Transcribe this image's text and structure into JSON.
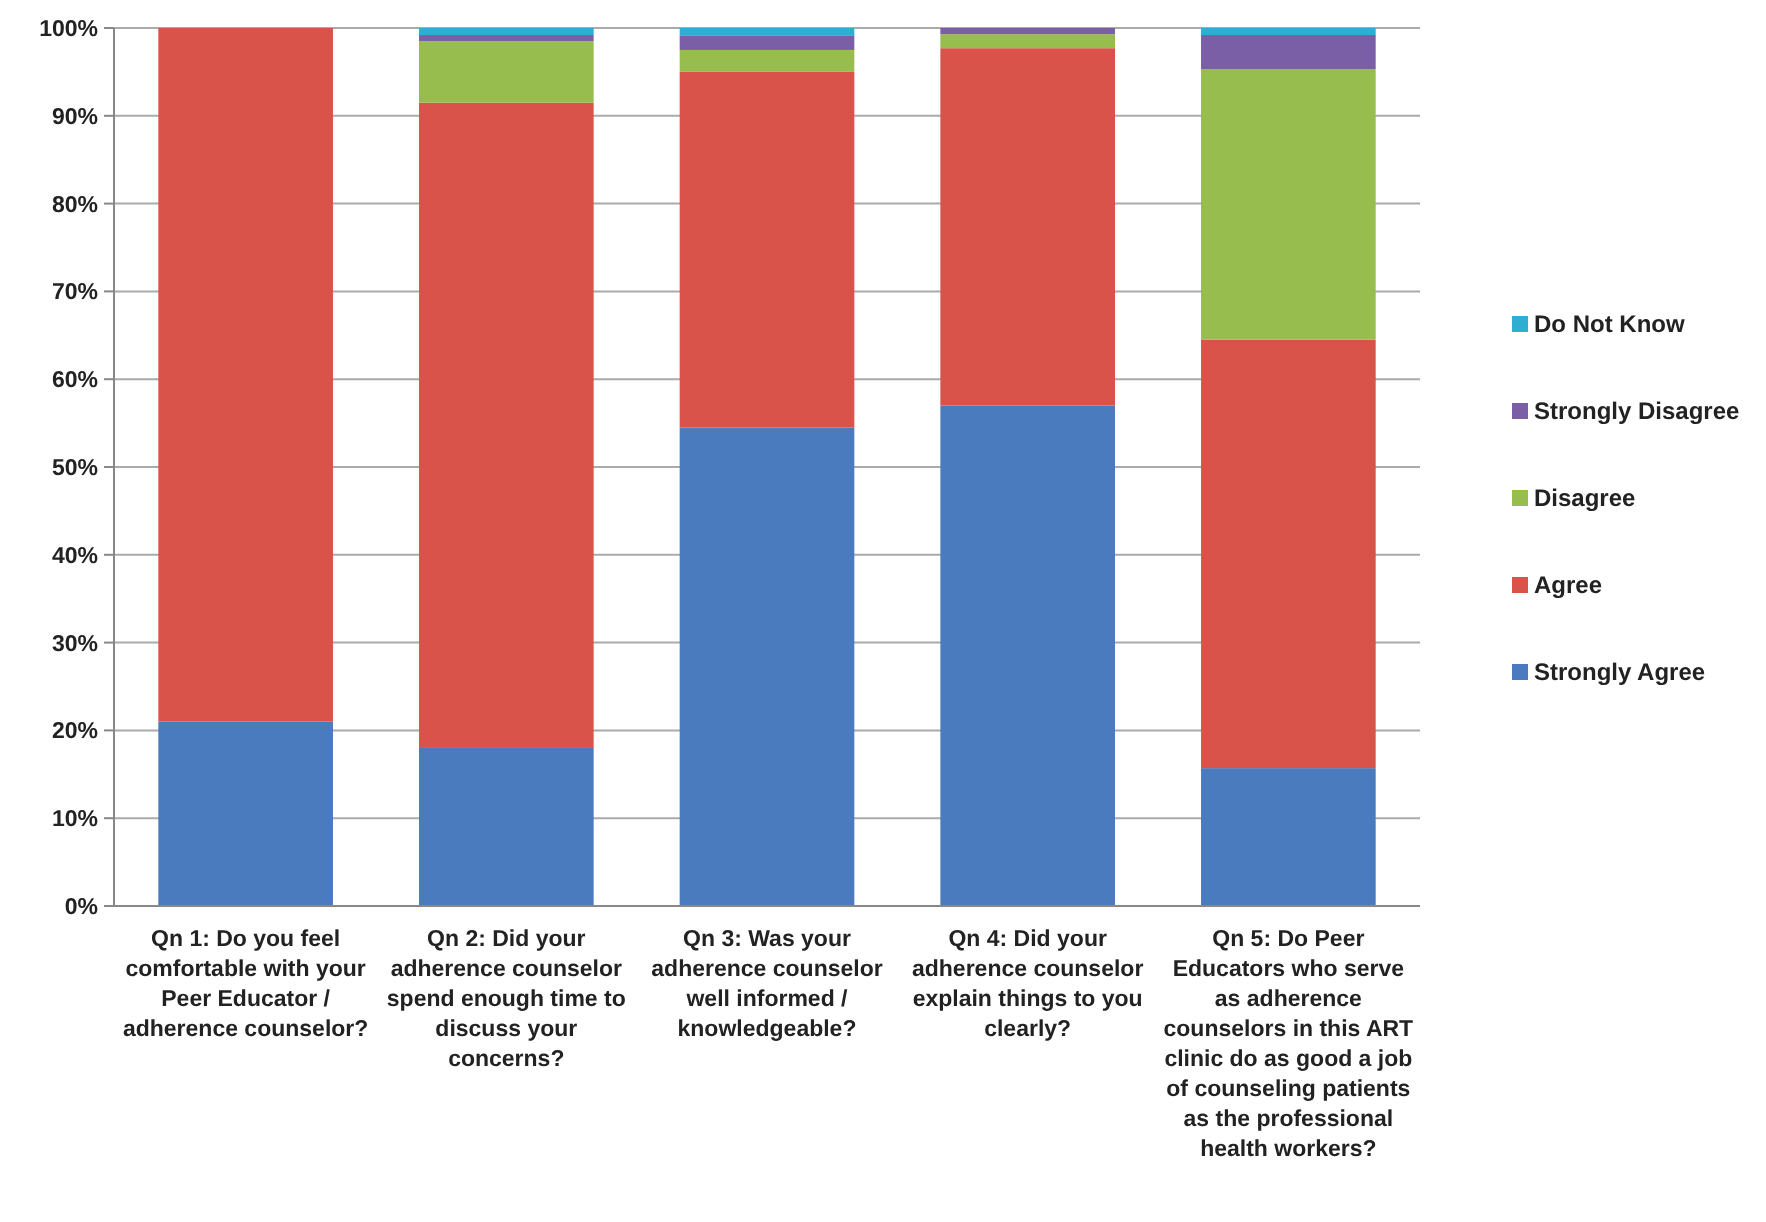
{
  "chart_data": {
    "type": "bar",
    "stacked": true,
    "categories": [
      "Qn 1: Do you feel comfortable with your Peer Educator / adherence counselor?",
      "Qn 2: Did your adherence counselor spend enough time to discuss your concerns?",
      "Qn 3: Was your adherence counselor well informed / knowledgeable?",
      "Qn 4: Did your adherence counselor explain things to you clearly?",
      "Qn 5: Do Peer Educators who serve as adherence counselors in this ART clinic do as good a job of counseling patients as the professional health workers?"
    ],
    "series": [
      {
        "name": "Strongly Agree",
        "color": "#4a7bbf",
        "values": [
          21,
          18,
          54.5,
          57,
          15.7
        ]
      },
      {
        "name": "Agree",
        "color": "#d9534a",
        "values": [
          79,
          73.5,
          40.5,
          40.7,
          48.8
        ]
      },
      {
        "name": "Disagree",
        "color": "#97bd4f",
        "values": [
          0,
          7,
          2.5,
          1.6,
          30.8
        ]
      },
      {
        "name": "Strongly Disagree",
        "color": "#7b5fa6",
        "values": [
          0,
          0.7,
          1.6,
          0.7,
          3.9
        ]
      },
      {
        "name": "Do Not Know",
        "color": "#2eaed0",
        "values": [
          0,
          0.8,
          0.9,
          0,
          0.8
        ]
      }
    ],
    "ylim": [
      0,
      100
    ],
    "yticks": [
      {
        "value": 0,
        "label": "0%"
      },
      {
        "value": 10,
        "label": "10%"
      },
      {
        "value": 20,
        "label": "20%"
      },
      {
        "value": 30,
        "label": "30%"
      },
      {
        "value": 40,
        "label": "40%"
      },
      {
        "value": 50,
        "label": "50%"
      },
      {
        "value": 60,
        "label": "60%"
      },
      {
        "value": 70,
        "label": "70%"
      },
      {
        "value": 80,
        "label": "80%"
      },
      {
        "value": 90,
        "label": "90%"
      },
      {
        "value": 100,
        "label": "100%"
      }
    ],
    "grid": "y",
    "legend": "right"
  }
}
